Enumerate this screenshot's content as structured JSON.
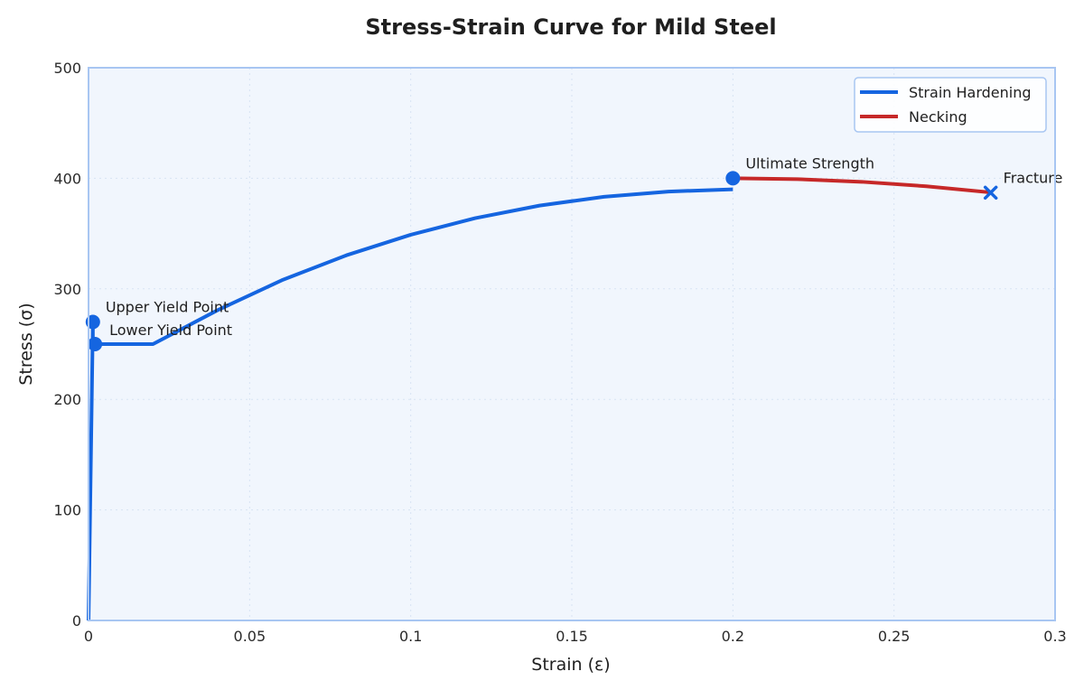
{
  "chart_data": {
    "type": "line",
    "title": "Stress-Strain Curve for Mild Steel",
    "xlabel": "Strain (ε)",
    "ylabel": "Stress (σ)",
    "xlim": [
      0,
      0.3
    ],
    "ylim": [
      0,
      500
    ],
    "xticks": [
      0,
      0.05,
      0.1,
      0.15,
      0.2,
      0.25,
      0.3
    ],
    "xtick_labels": [
      "0",
      "0.05",
      "0.1",
      "0.15",
      "0.2",
      "0.25",
      "0.3"
    ],
    "yticks": [
      0,
      100,
      200,
      300,
      400,
      500
    ],
    "ytick_labels": [
      "0",
      "100",
      "200",
      "300",
      "400",
      "500"
    ],
    "grid": true,
    "legend_position": "top-right",
    "series": [
      {
        "name": "Strain Hardening",
        "color": "#1565e0",
        "x": [
          0,
          0.00135,
          0.00135,
          0.002,
          0.02,
          0.04,
          0.06,
          0.08,
          0.1,
          0.12,
          0.14,
          0.16,
          0.18,
          0.2
        ],
        "y": [
          0,
          270,
          250,
          250,
          250,
          280.6,
          307.8,
          330.3,
          348.9,
          363.9,
          375.3,
          383.3,
          388.0,
          390.0
        ]
      },
      {
        "name": "Necking",
        "color": "#c62828",
        "x": [
          0.2,
          0.22,
          0.24,
          0.26,
          0.28
        ],
        "y": [
          400,
          399.2,
          396.8,
          392.8,
          387.2
        ]
      }
    ],
    "annotations": [
      {
        "label": "Upper Yield Point",
        "x": 0.00135,
        "y": 270,
        "marker": "circle"
      },
      {
        "label": "Lower Yield Point",
        "x": 0.002,
        "y": 250,
        "marker": "circle"
      },
      {
        "label": "Ultimate Strength",
        "x": 0.2,
        "y": 400,
        "marker": "circle"
      },
      {
        "label": "Fracture",
        "x": 0.28,
        "y": 387,
        "marker": "x"
      }
    ],
    "colors": {
      "plot_background": "#f1f6fd",
      "axes_border": "#a8c6f2",
      "grid": "#d7e3f3",
      "marker": "#1565e0"
    }
  }
}
